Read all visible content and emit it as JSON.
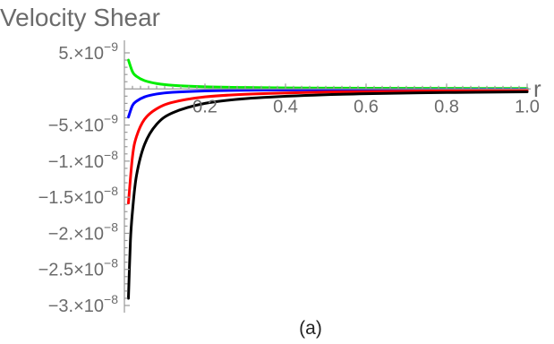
{
  "chart_data": {
    "type": "line",
    "title": "Velocity Shear",
    "xlabel": "r",
    "ylabel": "",
    "caption": "(a)",
    "xlim": [
      0.0,
      1.0
    ],
    "ylim": [
      -3e-08,
      5e-09
    ],
    "x_ticks": [
      {
        "value": 0.2,
        "label": "0.2"
      },
      {
        "value": 0.4,
        "label": "0.4"
      },
      {
        "value": 0.6,
        "label": "0.6"
      },
      {
        "value": 0.8,
        "label": "0.8"
      },
      {
        "value": 1.0,
        "label": "1.0"
      }
    ],
    "y_ticks": [
      {
        "value": 5e-09,
        "mantissa": "5.",
        "exponent": "-9"
      },
      {
        "value": -5e-09,
        "mantissa": "-5.",
        "exponent": "-9"
      },
      {
        "value": -1e-08,
        "mantissa": "-1.",
        "exponent": "-8"
      },
      {
        "value": -1.5e-08,
        "mantissa": "-1.5",
        "exponent": "-8"
      },
      {
        "value": -2e-08,
        "mantissa": "-2.",
        "exponent": "-8"
      },
      {
        "value": -2.5e-08,
        "mantissa": "-2.5",
        "exponent": "-8"
      },
      {
        "value": -3e-08,
        "mantissa": "-3.",
        "exponent": "-8"
      }
    ],
    "grid": false,
    "series": [
      {
        "color": "#00ee00",
        "x": [
          0.01,
          0.02,
          0.03,
          0.05,
          0.08,
          0.12,
          0.2,
          0.3,
          0.45,
          0.6,
          0.8,
          1.0
        ],
        "y": [
          4e-09,
          2.4e-09,
          1.75e-09,
          1.15e-09,
          7.5e-10,
          5e-10,
          3e-10,
          2e-10,
          1.3e-10,
          1e-10,
          8e-11,
          6e-11
        ]
      },
      {
        "color": "#0000ff",
        "x": [
          0.01,
          0.02,
          0.03,
          0.05,
          0.08,
          0.12,
          0.2,
          0.3,
          0.45,
          0.6,
          0.8,
          1.0
        ],
        "y": [
          -3.9e-09,
          -2.3e-09,
          -1.7e-09,
          -1.1e-09,
          -7e-10,
          -4.6e-10,
          -2.7e-10,
          -1.8e-10,
          -1.2e-10,
          -9e-11,
          -7e-11,
          -5e-11
        ]
      },
      {
        "color": "#ff0000",
        "x": [
          0.01,
          0.02,
          0.03,
          0.05,
          0.08,
          0.12,
          0.2,
          0.3,
          0.45,
          0.6,
          0.8,
          1.0
        ],
        "y": [
          -1.58e-08,
          -9.4e-09,
          -6.6e-09,
          -4.2e-09,
          -2.75e-09,
          -1.85e-09,
          -1.1e-09,
          -7.4e-10,
          -4.9e-10,
          -3.6e-10,
          -2.7e-10,
          -2.2e-10
        ]
      },
      {
        "color": "#000000",
        "x": [
          0.01,
          0.015,
          0.02,
          0.03,
          0.05,
          0.08,
          0.12,
          0.2,
          0.3,
          0.45,
          0.6,
          0.8,
          1.0
        ],
        "y": [
          -2.9e-08,
          -2.1e-08,
          -1.7e-08,
          -1.2e-08,
          -7.7e-09,
          -4.9e-09,
          -3.3e-09,
          -2e-09,
          -1.35e-09,
          -9e-10,
          -6.6e-10,
          -5e-10,
          -4e-10
        ]
      }
    ]
  }
}
